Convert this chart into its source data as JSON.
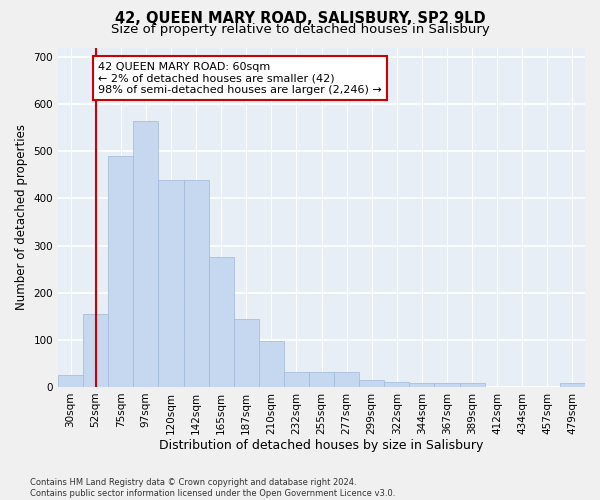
{
  "title1": "42, QUEEN MARY ROAD, SALISBURY, SP2 9LD",
  "title2": "Size of property relative to detached houses in Salisbury",
  "xlabel": "Distribution of detached houses by size in Salisbury",
  "ylabel": "Number of detached properties",
  "categories": [
    "30sqm",
    "52sqm",
    "75sqm",
    "97sqm",
    "120sqm",
    "142sqm",
    "165sqm",
    "187sqm",
    "210sqm",
    "232sqm",
    "255sqm",
    "277sqm",
    "299sqm",
    "322sqm",
    "344sqm",
    "367sqm",
    "389sqm",
    "412sqm",
    "434sqm",
    "457sqm",
    "479sqm"
  ],
  "values": [
    25,
    155,
    490,
    565,
    440,
    438,
    275,
    145,
    97,
    32,
    32,
    32,
    15,
    10,
    8,
    8,
    8,
    0,
    0,
    0,
    8
  ],
  "bar_color": "#c5d8f0",
  "bar_edge_color": "#a0b8d8",
  "vline_x": 1.0,
  "vline_color": "#cc0000",
  "annotation_text": "42 QUEEN MARY ROAD: 60sqm\n← 2% of detached houses are smaller (42)\n98% of semi-detached houses are larger (2,246) →",
  "annotation_box_color": "#ffffff",
  "annotation_box_edge": "#cc0000",
  "footnote": "Contains HM Land Registry data © Crown copyright and database right 2024.\nContains public sector information licensed under the Open Government Licence v3.0.",
  "ylim": [
    0,
    720
  ],
  "yticks": [
    0,
    100,
    200,
    300,
    400,
    500,
    600,
    700
  ],
  "bg_color": "#e8eef5",
  "grid_color": "#ffffff",
  "title_fontsize": 10.5,
  "subtitle_fontsize": 9.5,
  "axis_label_fontsize": 8.5,
  "tick_fontsize": 7.5,
  "footnote_fontsize": 6.0
}
